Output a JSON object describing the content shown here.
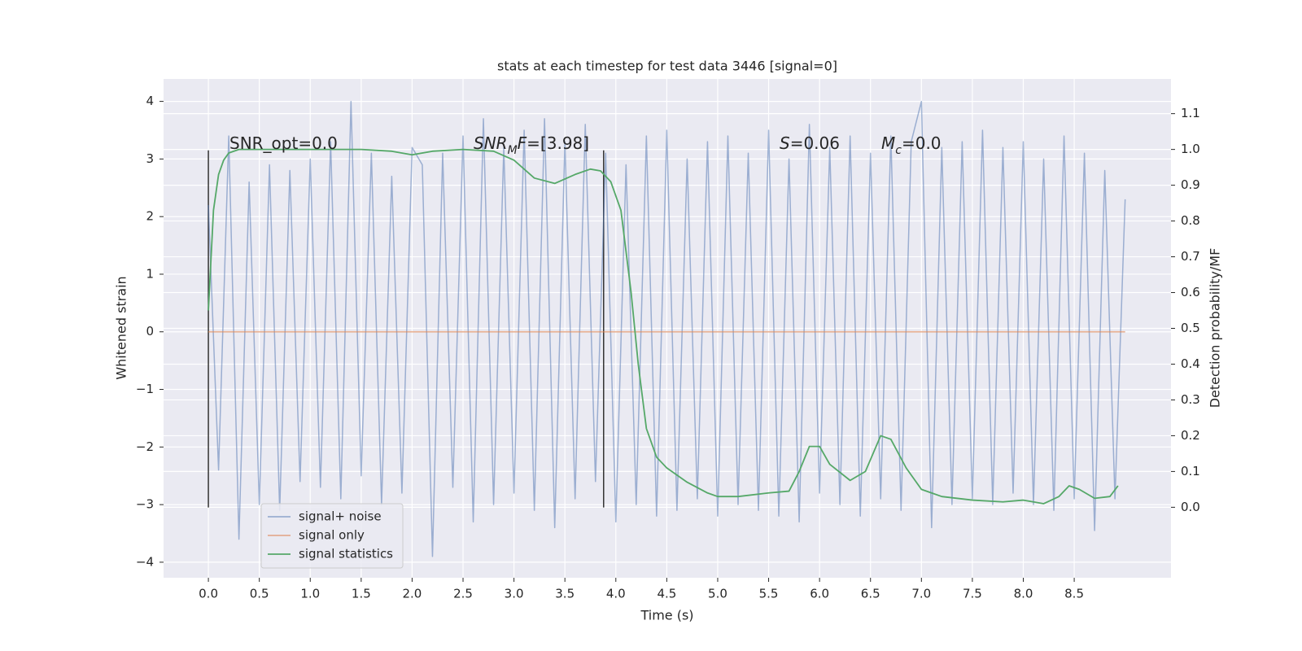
{
  "chart_data": {
    "type": "line",
    "title": "stats at each timestep for test data 3446 [signal=0]",
    "xlabel": "Time (s)",
    "ylabel": "Whitened strain",
    "y2label": "Detection probability/MF",
    "xlim": [
      -0.44,
      9.45
    ],
    "ylim": [
      -4.27,
      4.39
    ],
    "y2lim": [
      -0.197,
      1.197
    ],
    "xticks": [
      {
        "value": 0,
        "label": "0.0"
      },
      0.5,
      {
        "value": 1,
        "label": "1.0"
      },
      1.5,
      {
        "value": 2,
        "label": "2.0"
      },
      2.5,
      {
        "value": 3,
        "label": "3.0"
      },
      3.5,
      {
        "value": 4,
        "label": "4.0"
      },
      4.5,
      {
        "value": 5,
        "label": "5.0"
      },
      5.5,
      {
        "value": 6,
        "label": "6.0"
      },
      6.5,
      {
        "value": 7,
        "label": "7.0"
      },
      7.5,
      {
        "value": 8,
        "label": "8.0"
      },
      8.5
    ],
    "yticks": [
      {
        "value": -4,
        "label": "−4"
      },
      {
        "value": -3,
        "label": "−3"
      },
      {
        "value": -2,
        "label": "−2"
      },
      {
        "value": -1,
        "label": "−1"
      },
      0,
      1,
      2,
      3,
      4
    ],
    "y2ticks": [
      {
        "value": 0,
        "label": "0.0"
      },
      0.1,
      0.2,
      0.3,
      0.4,
      0.5,
      0.6,
      0.7,
      0.8,
      0.9,
      {
        "value": 1,
        "label": "1.0"
      },
      1.1
    ],
    "grid": true,
    "legend": "lower left",
    "series": [
      {
        "name": "signal+ noise",
        "color": "#4c72b0",
        "x": [
          0,
          0.1,
          0.2,
          0.3,
          0.4,
          0.5,
          0.6,
          0.7,
          0.8,
          0.9,
          1,
          1.1,
          1.2,
          1.3,
          1.4,
          1.5,
          1.6,
          1.7,
          1.8,
          1.9,
          2,
          2.1,
          2.2,
          2.3,
          2.4,
          2.5,
          2.6,
          2.7,
          2.8,
          2.9,
          3,
          3.1,
          3.2,
          3.3,
          3.4,
          3.5,
          3.6,
          3.7,
          3.8,
          3.9,
          4,
          4.1,
          4.2,
          4.3,
          4.4,
          4.5,
          4.6,
          4.7,
          4.8,
          4.9,
          5,
          5.1,
          5.2,
          5.3,
          5.4,
          5.5,
          5.6,
          5.7,
          5.8,
          5.9,
          6,
          6.1,
          6.2,
          6.3,
          6.4,
          6.5,
          6.6,
          6.7,
          6.8,
          6.9,
          7,
          7.1,
          7.2,
          7.3,
          7.4,
          7.5,
          7.6,
          7.7,
          7.8,
          7.9,
          8,
          8.1,
          8.2,
          8.3,
          8.4,
          8.5,
          8.6,
          8.7,
          8.8,
          8.9,
          9
        ],
        "values": [
          2.2,
          -2.4,
          3.4,
          -3.6,
          2.6,
          -3.0,
          2.9,
          -3.1,
          2.8,
          -2.6,
          3.0,
          -2.7,
          3.3,
          -2.9,
          4.0,
          -2.5,
          3.1,
          -3.0,
          2.7,
          -2.8,
          3.2,
          2.9,
          -3.9,
          3.1,
          -2.7,
          3.4,
          -3.3,
          3.7,
          -3.0,
          3.2,
          -2.8,
          3.5,
          -3.1,
          3.7,
          -3.4,
          3.3,
          -2.9,
          3.6,
          -2.6,
          3.1,
          -3.3,
          2.9,
          -3.0,
          3.4,
          -3.2,
          3.5,
          -3.1,
          3.0,
          -2.9,
          3.3,
          -3.2,
          3.4,
          -3.0,
          3.1,
          -3.1,
          3.5,
          -3.2,
          3.0,
          -3.3,
          3.6,
          -2.8,
          3.2,
          -3.0,
          3.4,
          -3.2,
          3.1,
          -2.9,
          3.4,
          -3.1,
          3.3,
          4.0,
          -3.4,
          3.2,
          -3.0,
          3.3,
          -2.9,
          3.5,
          -3.0,
          3.2,
          -2.8,
          3.3,
          -3.0,
          3.0,
          -3.1,
          3.4,
          -2.9,
          3.1,
          -3.45,
          2.8,
          -2.9,
          2.3
        ]
      },
      {
        "name": "signal only",
        "color": "#dd8452",
        "x": [
          0,
          9
        ],
        "values": [
          0,
          0
        ]
      },
      {
        "name": "signal statistics",
        "color": "#55a868",
        "axis": "y2",
        "x": [
          0,
          0.05,
          0.1,
          0.15,
          0.2,
          0.3,
          0.5,
          1,
          1.5,
          1.8,
          2,
          2.2,
          2.5,
          2.8,
          3,
          3.2,
          3.4,
          3.6,
          3.75,
          3.85,
          3.95,
          4.05,
          4.15,
          4.22,
          4.3,
          4.4,
          4.5,
          4.7,
          4.9,
          5,
          5.2,
          5.5,
          5.7,
          5.8,
          5.9,
          6,
          6.1,
          6.3,
          6.45,
          6.6,
          6.7,
          6.85,
          7,
          7.2,
          7.5,
          7.8,
          8,
          8.2,
          8.35,
          8.45,
          8.55,
          8.7,
          8.85,
          8.93
        ],
        "values": [
          0.55,
          0.83,
          0.93,
          0.97,
          0.99,
          1.0,
          1.0,
          1.0,
          1.0,
          0.995,
          0.985,
          0.995,
          1.0,
          0.995,
          0.97,
          0.92,
          0.905,
          0.93,
          0.945,
          0.94,
          0.91,
          0.83,
          0.6,
          0.4,
          0.22,
          0.14,
          0.11,
          0.07,
          0.04,
          0.03,
          0.03,
          0.04,
          0.045,
          0.1,
          0.17,
          0.17,
          0.12,
          0.075,
          0.1,
          0.2,
          0.19,
          0.11,
          0.05,
          0.03,
          0.02,
          0.015,
          0.02,
          0.01,
          0.03,
          0.06,
          0.05,
          0.025,
          0.03,
          0.06
        ]
      }
    ],
    "vlines": [
      {
        "x": 0,
        "ymin": -3.05,
        "ymax": 3.15,
        "color": "#333333"
      },
      {
        "x": 3.88,
        "ymin": -3.05,
        "ymax": 3.15,
        "color": "#333333"
      }
    ],
    "annotations": [
      {
        "parts": [
          {
            "text": "SNR_opt=0.0"
          }
        ]
      },
      {
        "parts": [
          {
            "text": "SNR",
            "italic": true
          },
          {
            "text": "M",
            "italic": true,
            "sub": true
          },
          {
            "text": "F",
            "italic": true
          },
          {
            "text": "=[3.98]"
          }
        ]
      },
      {
        "parts": [
          {
            "text": "S",
            "italic": true
          },
          {
            "text": "=0.06"
          }
        ]
      },
      {
        "parts": [
          {
            "text": "M",
            "italic": true
          },
          {
            "text": "c",
            "italic": true,
            "sub": true
          },
          {
            "text": "=0.0"
          }
        ]
      }
    ]
  }
}
